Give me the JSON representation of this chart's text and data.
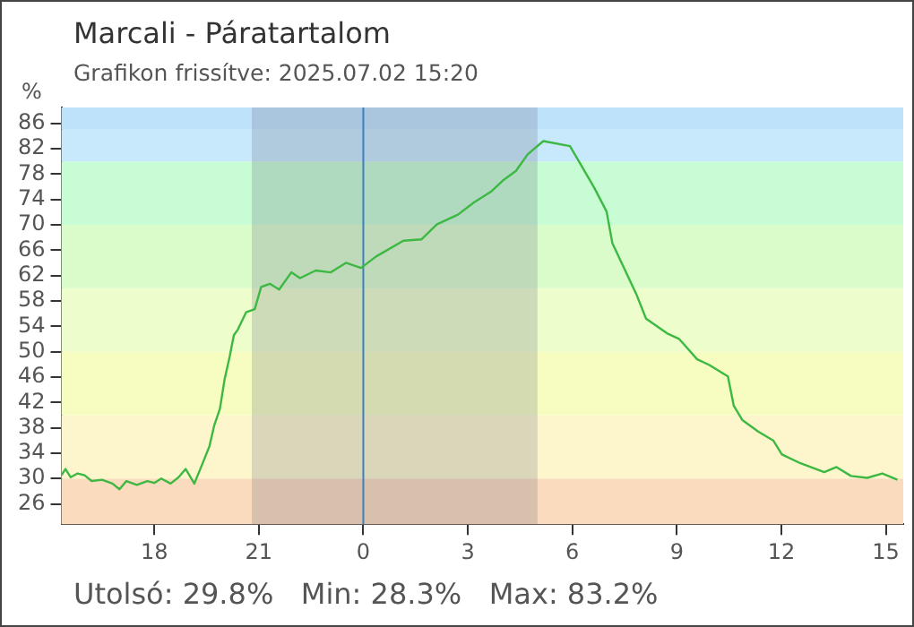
{
  "chart_data": {
    "type": "line",
    "title": "Marcali - Páratartalom",
    "subtitle": "Grafikon frissítve: 2025.07.02 15:20",
    "ylabel": "%",
    "annotations": [
      "Utolsó: 29.8%   Min: 28.3%   Max: 83.2%"
    ],
    "series": [
      {
        "color": "#3cb843",
        "x": [
          "2025-07-01T15:20",
          "2025-07-01T15:27",
          "2025-07-01T15:36",
          "2025-07-01T15:48",
          "2025-07-01T16:00",
          "2025-07-01T16:12",
          "2025-07-01T16:30",
          "2025-07-01T16:48",
          "2025-07-01T17:00",
          "2025-07-01T17:12",
          "2025-07-01T17:30",
          "2025-07-01T17:48",
          "2025-07-01T18:00",
          "2025-07-01T18:12",
          "2025-07-01T18:28",
          "2025-07-01T18:42",
          "2025-07-01T18:54",
          "2025-07-01T19:09",
          "2025-07-01T19:25",
          "2025-07-01T19:35",
          "2025-07-01T19:43",
          "2025-07-01T19:53",
          "2025-07-01T20:01",
          "2025-07-01T20:10",
          "2025-07-01T20:17",
          "2025-07-01T20:24",
          "2025-07-01T20:38",
          "2025-07-01T20:53",
          "2025-07-01T21:04",
          "2025-07-01T21:19",
          "2025-07-01T21:35",
          "2025-07-01T21:56",
          "2025-07-01T22:11",
          "2025-07-01T22:38",
          "2025-07-01T23:04",
          "2025-07-01T23:30",
          "2025-07-01T23:56",
          "2025-07-02T00:22",
          "2025-07-02T01:09",
          "2025-07-02T01:40",
          "2025-07-02T02:07",
          "2025-07-02T02:43",
          "2025-07-02T03:10",
          "2025-07-02T03:41",
          "2025-07-02T04:02",
          "2025-07-02T04:23",
          "2025-07-02T04:43",
          "2025-07-02T05:10",
          "2025-07-02T05:56",
          "2025-07-02T06:12",
          "2025-07-02T06:38",
          "2025-07-02T06:59",
          "2025-07-02T07:09",
          "2025-07-02T07:30",
          "2025-07-02T07:51",
          "2025-07-02T08:07",
          "2025-07-02T08:43",
          "2025-07-02T09:04",
          "2025-07-02T09:35",
          "2025-07-02T09:56",
          "2025-07-02T10:28",
          "2025-07-02T10:38",
          "2025-07-02T10:53",
          "2025-07-02T11:20",
          "2025-07-02T11:46",
          "2025-07-02T12:01",
          "2025-07-02T12:33",
          "2025-07-02T13:14",
          "2025-07-02T13:35",
          "2025-07-02T14:00",
          "2025-07-02T14:28",
          "2025-07-02T14:54",
          "2025-07-02T15:20"
        ],
        "values": [
          30.5,
          31.5,
          30.2,
          30.8,
          30.5,
          29.6,
          29.8,
          29.2,
          28.3,
          29.6,
          29.0,
          29.6,
          29.3,
          30.0,
          29.2,
          30.2,
          31.5,
          29.2,
          32.8,
          35.1,
          38.3,
          41.0,
          45.6,
          49.3,
          52.6,
          53.5,
          56.2,
          56.7,
          60.2,
          60.7,
          59.8,
          62.5,
          61.6,
          62.8,
          62.5,
          64.0,
          63.2,
          65.0,
          67.5,
          67.7,
          70.1,
          71.6,
          73.5,
          75.3,
          77.1,
          78.5,
          81.1,
          83.2,
          82.4,
          79.9,
          75.8,
          72.1,
          67.1,
          63.0,
          58.9,
          55.2,
          52.9,
          52.0,
          48.8,
          47.9,
          46.1,
          41.5,
          39.2,
          37.4,
          36.0,
          33.8,
          32.4,
          31.0,
          31.8,
          30.4,
          30.1,
          30.8,
          29.8
        ]
      }
    ],
    "xlim": [
      "2025-07-01T15:20",
      "2025-07-02T15:30"
    ],
    "xticks": [
      {
        "value": "2025-07-01T18:00",
        "label": "18"
      },
      {
        "value": "2025-07-01T21:00",
        "label": "21"
      },
      {
        "value": "2025-07-02T00:00",
        "label": "0"
      },
      {
        "value": "2025-07-02T03:00",
        "label": "3"
      },
      {
        "value": "2025-07-02T06:00",
        "label": "6"
      },
      {
        "value": "2025-07-02T09:00",
        "label": "9"
      },
      {
        "value": "2025-07-02T12:00",
        "label": "12"
      },
      {
        "value": "2025-07-02T15:00",
        "label": "15"
      }
    ],
    "ylim": [
      22.8,
      88.5
    ],
    "yticks": [
      26,
      30,
      34,
      38,
      42,
      46,
      50,
      54,
      58,
      62,
      66,
      70,
      74,
      78,
      82,
      86
    ],
    "bands": [
      {
        "axis": "y",
        "from": 22.8,
        "to": 30,
        "color": "#fadbbd"
      },
      {
        "axis": "y",
        "from": 30,
        "to": 40,
        "color": "#fdf6cc"
      },
      {
        "axis": "y",
        "from": 40,
        "to": 50,
        "color": "#f7fdc0"
      },
      {
        "axis": "y",
        "from": 50,
        "to": 60,
        "color": "#eefdcc"
      },
      {
        "axis": "y",
        "from": 60,
        "to": 70,
        "color": "#dafccb"
      },
      {
        "axis": "y",
        "from": 70,
        "to": 80,
        "color": "#c8fcd5"
      },
      {
        "axis": "y",
        "from": 80,
        "to": 85,
        "color": "#c8e8fc"
      },
      {
        "axis": "y",
        "from": 85,
        "to": 88.5,
        "color": "#bfe2fb"
      },
      {
        "axis": "x",
        "from": "2025-07-01T20:48",
        "to": "2025-07-02T05:00",
        "color": "#5a6478"
      }
    ],
    "ref_lines": [
      {
        "axis": "x",
        "value": "2025-07-02T00:00",
        "color": "#3a80c0"
      }
    ],
    "grid": false,
    "legend": false,
    "marker": "none",
    "line_style": "solid"
  }
}
